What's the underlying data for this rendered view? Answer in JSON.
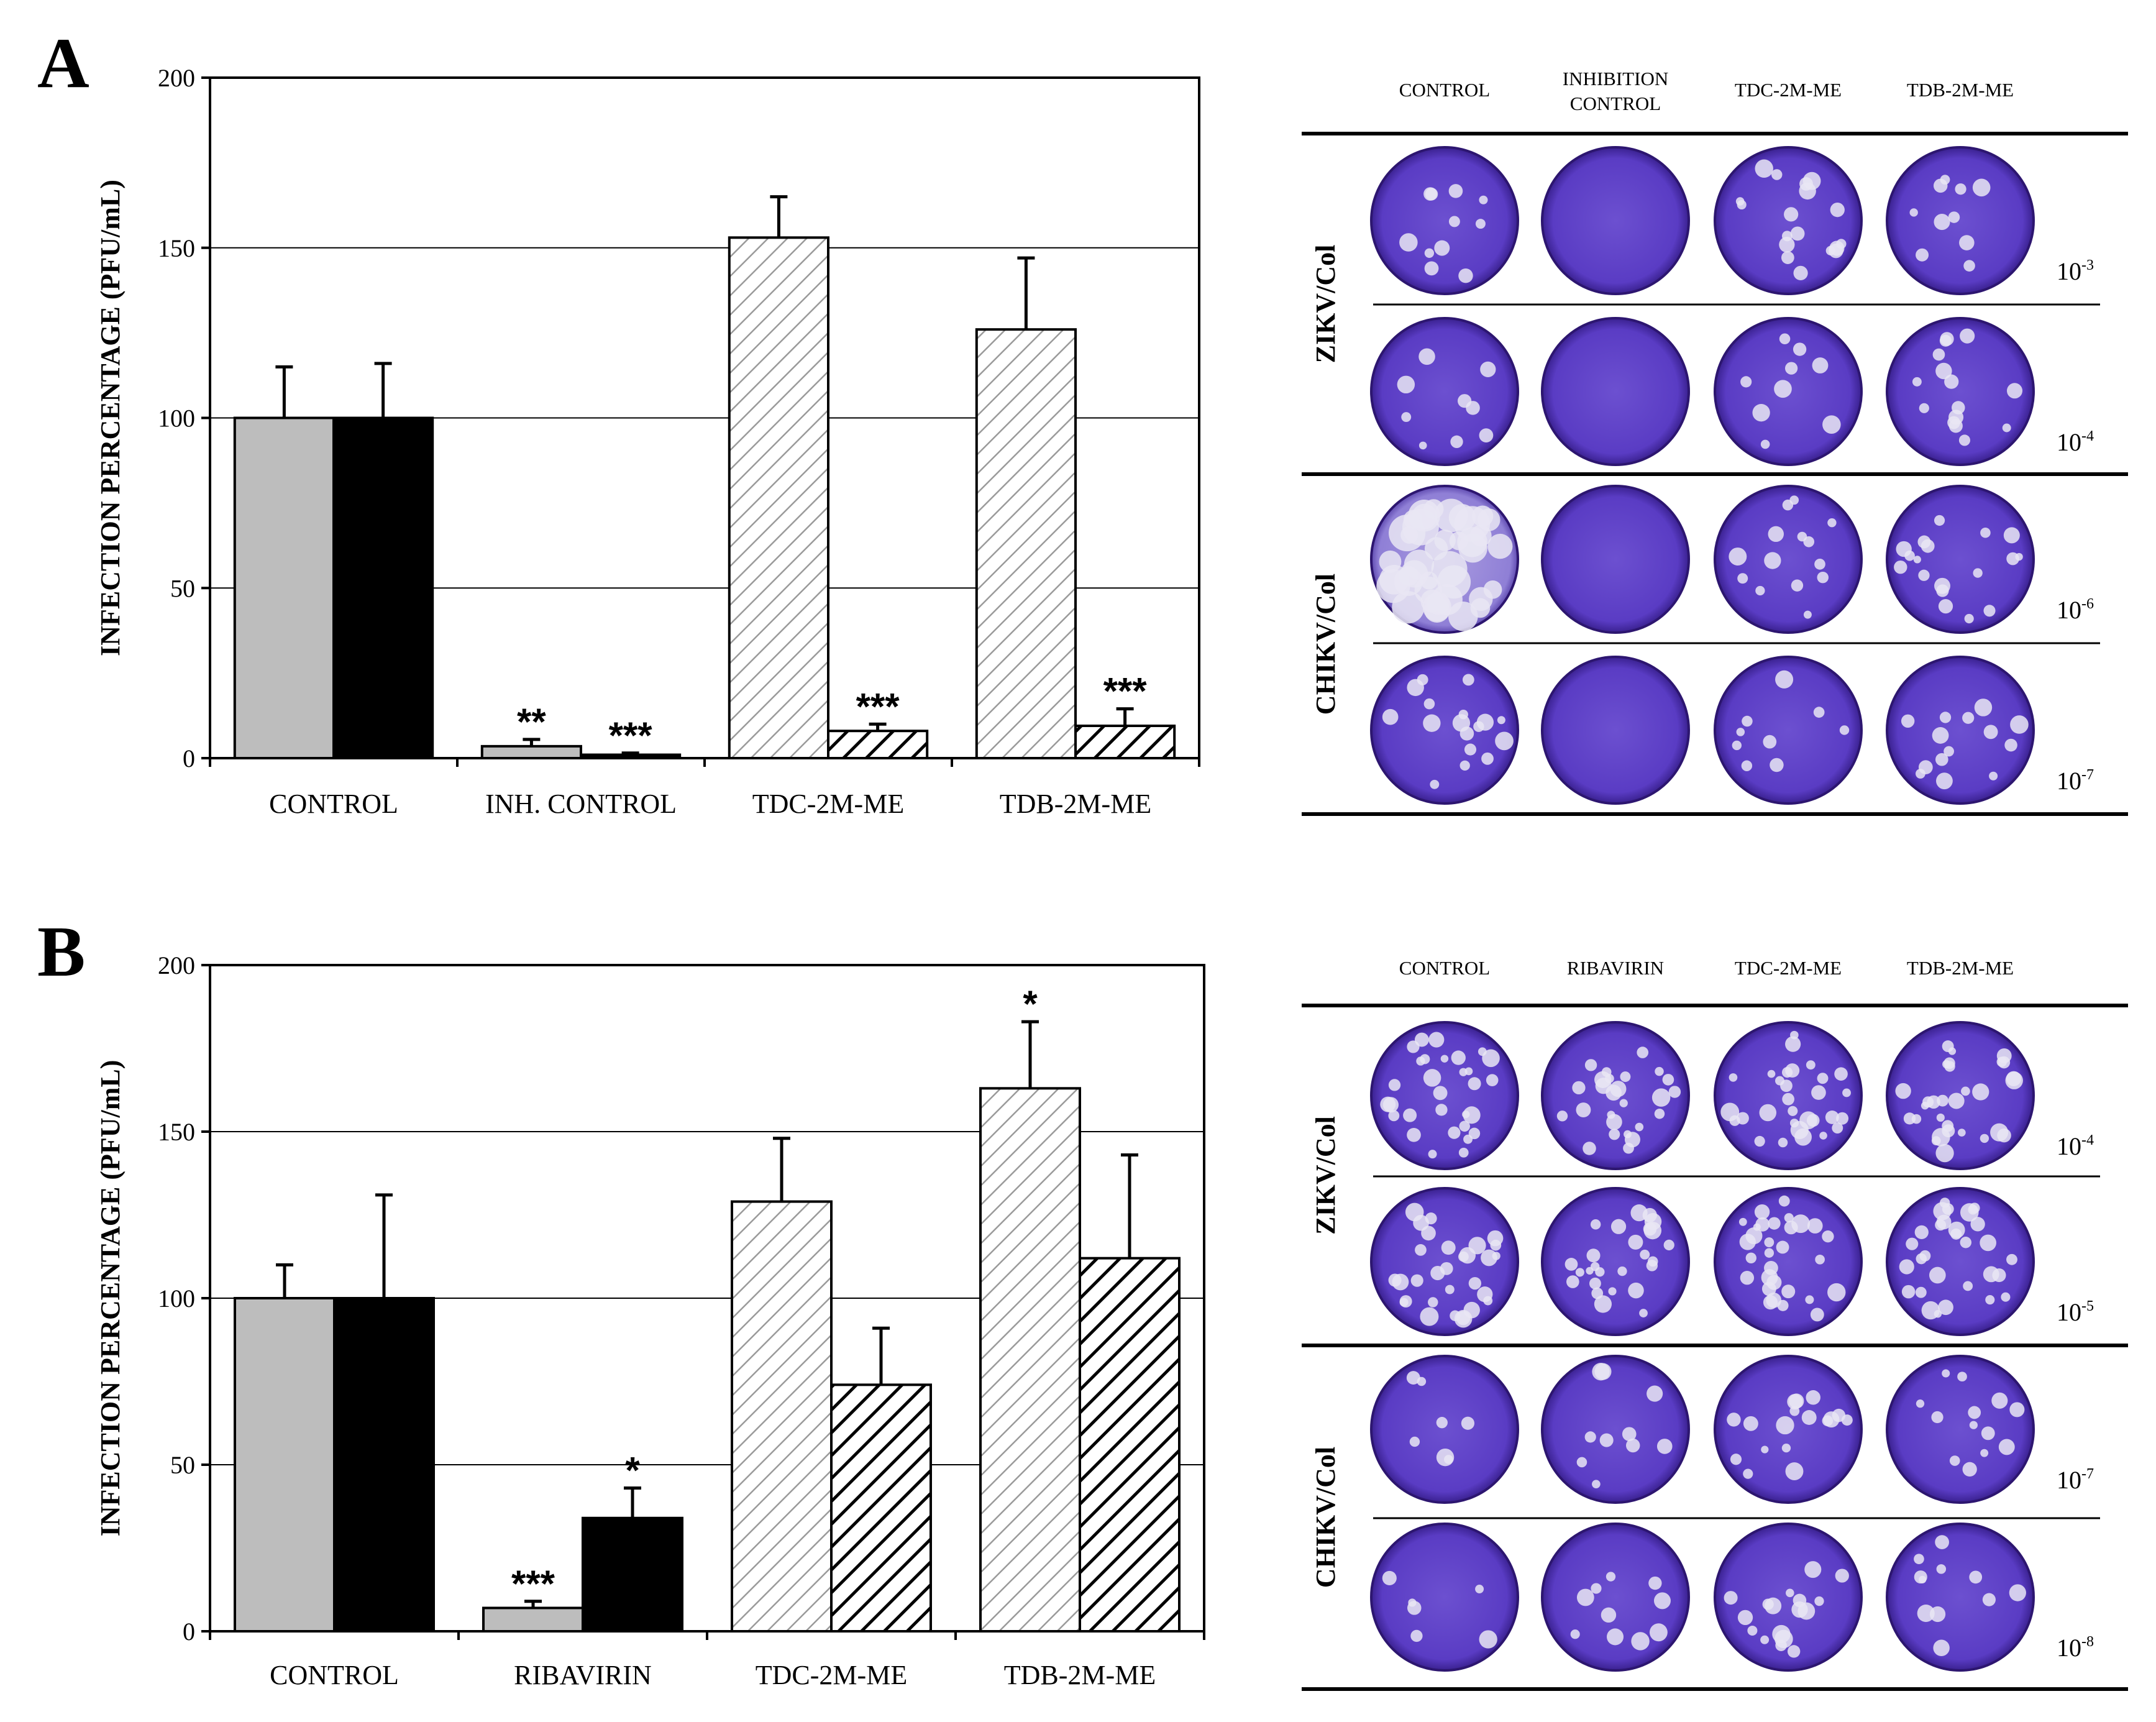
{
  "panels": [
    {
      "letter": "A",
      "chart_data": {
        "type": "bar",
        "ylabel": "INFECTION PERCENTAGE (PFU/mL)",
        "xlabel": "",
        "ylim": [
          0,
          200
        ],
        "yticks": [
          "0",
          "50",
          "100",
          "150",
          "200"
        ],
        "grid": true,
        "categories": [
          "CONTROL",
          "INH. CONTROL",
          "TDC-2M-ME",
          "TDB-2M-ME"
        ],
        "bars": [
          {
            "category": "CONTROL",
            "style": "gray",
            "value": 100,
            "error": 15,
            "star": ""
          },
          {
            "category": "CONTROL",
            "style": "black",
            "value": 100,
            "error": 16,
            "star": ""
          },
          {
            "category": "INH. CONTROL",
            "style": "gray",
            "value": 3.5,
            "error": 2,
            "star": "**"
          },
          {
            "category": "INH. CONTROL",
            "style": "black",
            "value": 1,
            "error": 0.5,
            "star": "***"
          },
          {
            "category": "TDC-2M-ME",
            "style": "light-hatch",
            "value": 153,
            "error": 12,
            "star": ""
          },
          {
            "category": "TDC-2M-ME",
            "style": "dark-hatch",
            "value": 8,
            "error": 2,
            "star": "***"
          },
          {
            "category": "TDB-2M-ME",
            "style": "light-hatch",
            "value": 126,
            "error": 21,
            "star": ""
          },
          {
            "category": "TDB-2M-ME",
            "style": "dark-hatch",
            "value": 9.5,
            "error": 5,
            "star": "***"
          }
        ]
      },
      "plates": {
        "columns": [
          "CONTROL",
          "INHIBITION\nCONTROL",
          "TDC-2M-ME",
          "TDB-2M-ME"
        ],
        "groups": [
          {
            "label": "ZIKV/Col",
            "rows": [
              {
                "base": "10",
                "exp": "-3"
              },
              {
                "base": "10",
                "exp": "-4"
              }
            ]
          },
          {
            "label": "CHIKV/Col",
            "rows": [
              {
                "base": "10",
                "exp": "-6"
              },
              {
                "base": "10",
                "exp": "-7"
              }
            ]
          }
        ]
      }
    },
    {
      "letter": "B",
      "chart_data": {
        "type": "bar",
        "ylabel": "INFECTION PERCENTAGE (PFU/mL)",
        "xlabel": "",
        "ylim": [
          0,
          200
        ],
        "yticks": [
          "0",
          "50",
          "100",
          "150",
          "200"
        ],
        "grid": true,
        "categories": [
          "CONTROL",
          "RIBAVIRIN",
          "TDC-2M-ME",
          "TDB-2M-ME"
        ],
        "bars": [
          {
            "category": "CONTROL",
            "style": "gray",
            "value": 100,
            "error": 10,
            "star": ""
          },
          {
            "category": "CONTROL",
            "style": "black",
            "value": 100,
            "error": 31,
            "star": ""
          },
          {
            "category": "RIBAVIRIN",
            "style": "gray",
            "value": 7,
            "error": 2,
            "star": "***"
          },
          {
            "category": "RIBAVIRIN",
            "style": "black",
            "value": 34,
            "error": 9,
            "star": "*"
          },
          {
            "category": "TDC-2M-ME",
            "style": "light-hatch",
            "value": 129,
            "error": 19,
            "star": ""
          },
          {
            "category": "TDC-2M-ME",
            "style": "dark-hatch",
            "value": 74,
            "error": 17,
            "star": ""
          },
          {
            "category": "TDB-2M-ME",
            "style": "light-hatch",
            "value": 163,
            "error": 20,
            "star": "*"
          },
          {
            "category": "TDB-2M-ME",
            "style": "dark-hatch",
            "value": 112,
            "error": 31,
            "star": ""
          }
        ]
      },
      "plates": {
        "columns": [
          "CONTROL",
          "RIBAVIRIN",
          "TDC-2M-ME",
          "TDB-2M-ME"
        ],
        "groups": [
          {
            "label": "ZIKV/Col",
            "rows": [
              {
                "base": "10",
                "exp": "-4"
              },
              {
                "base": "10",
                "exp": "-5"
              }
            ]
          },
          {
            "label": "CHIKV/Col",
            "rows": [
              {
                "base": "10",
                "exp": "-7"
              },
              {
                "base": "10",
                "exp": "-8"
              }
            ]
          }
        ]
      }
    }
  ],
  "colors": {
    "gray_bar": "#bdbdbd",
    "black_bar": "#000000",
    "grid": "#000000",
    "plate_dark": "#5a3cc4",
    "plate_mid": "#7a5fd6",
    "plate_light": "#c9c0ea",
    "plaque": "#e9e6f3"
  }
}
